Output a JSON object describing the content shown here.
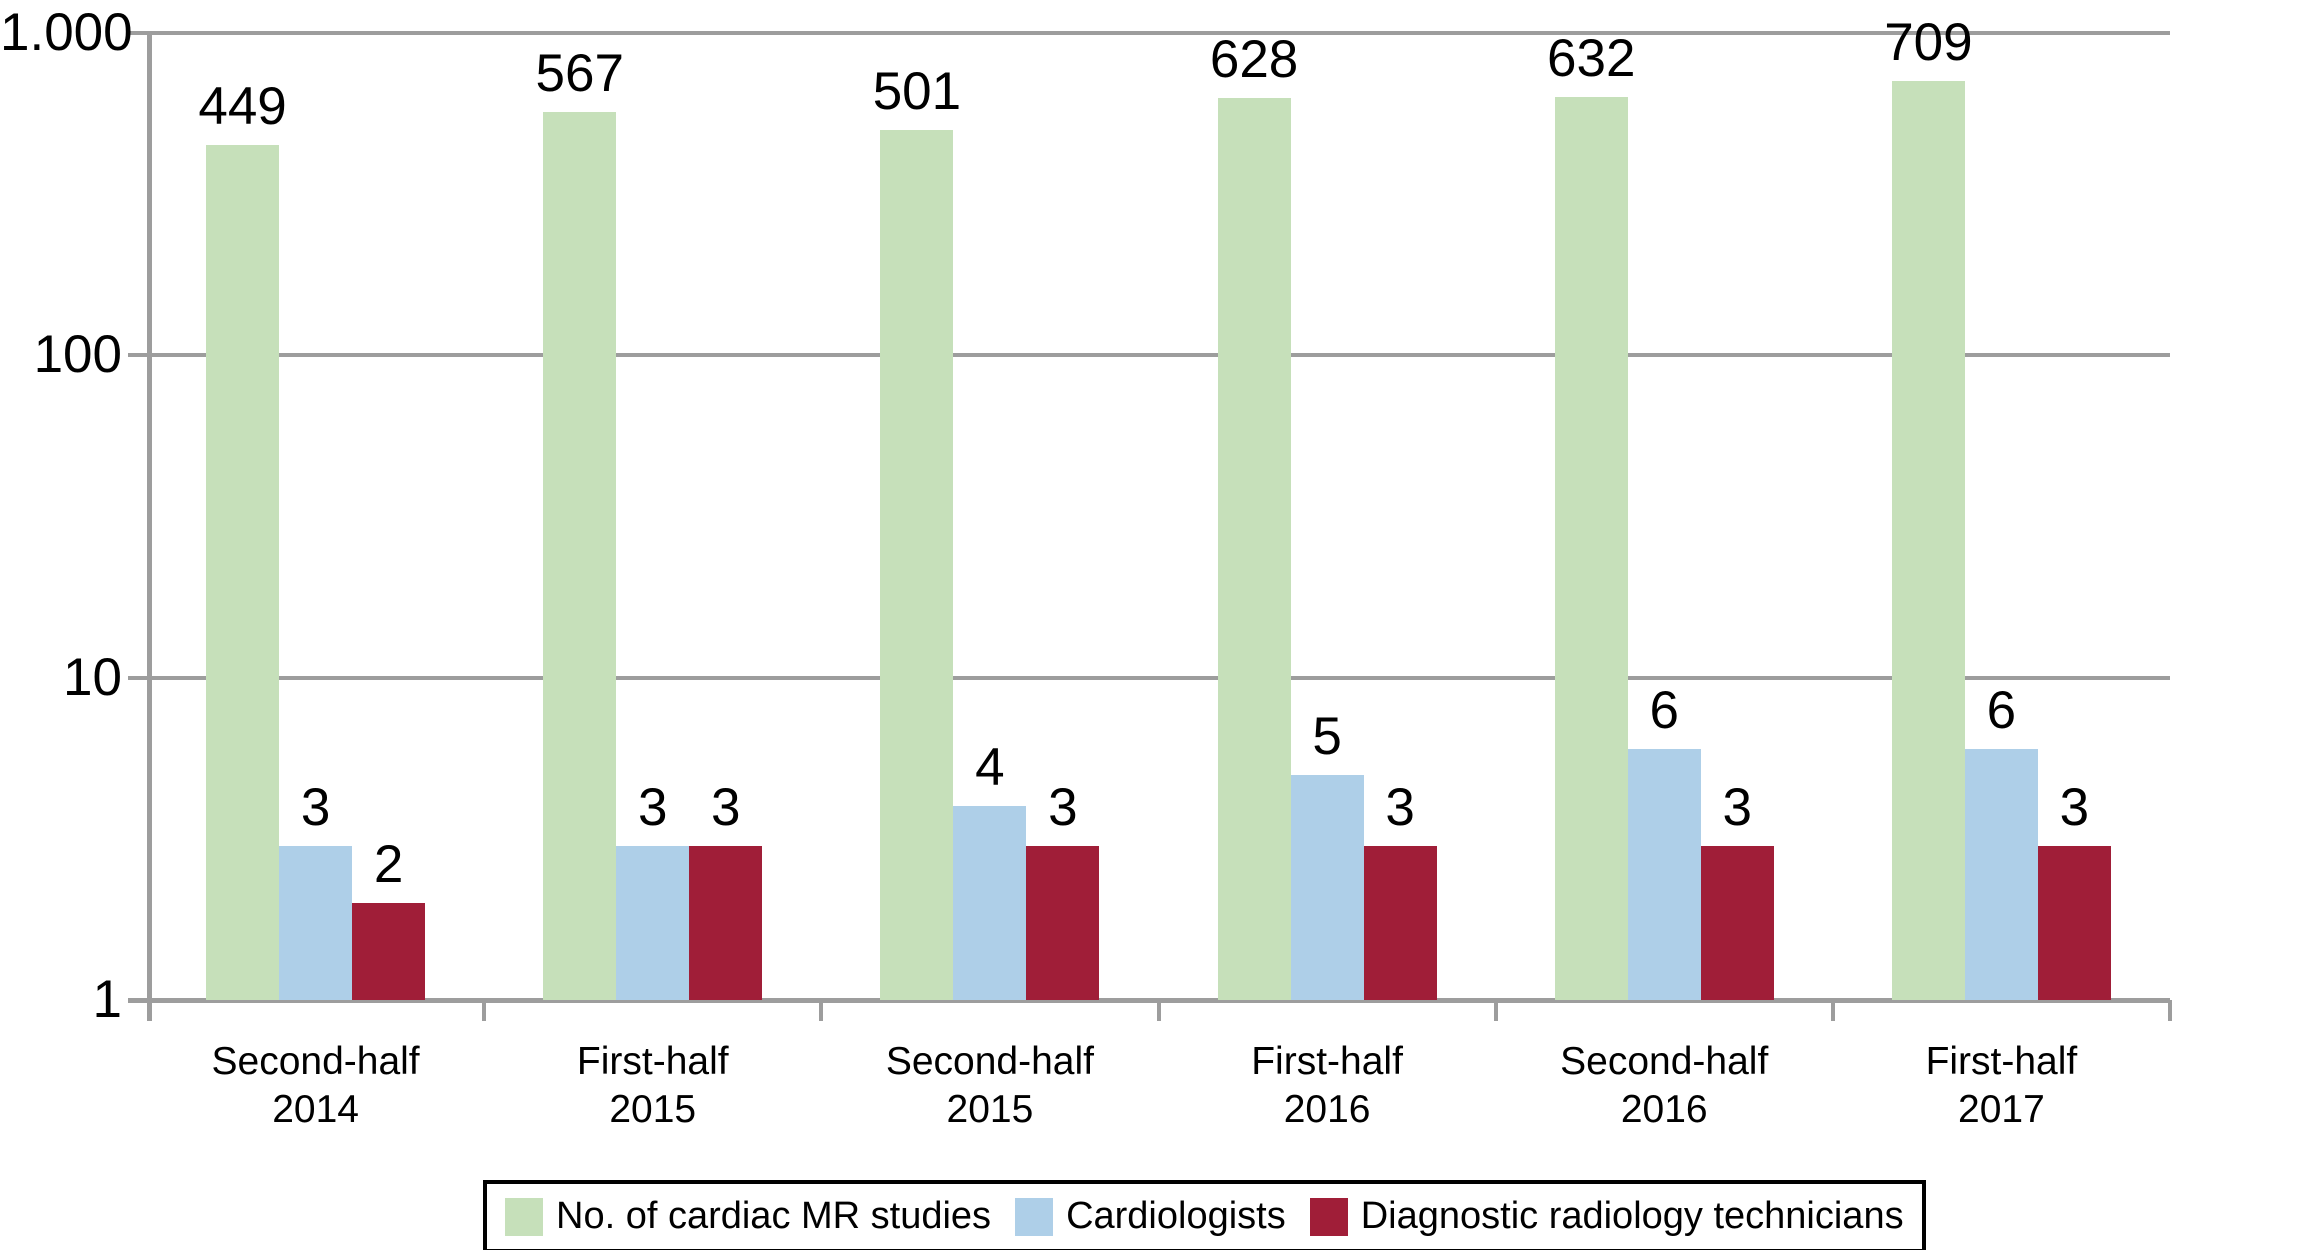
{
  "chart_data": {
    "type": "bar",
    "title": "",
    "xlabel": "",
    "ylabel": "",
    "y_scale": "log10",
    "ylim": [
      1,
      1000
    ],
    "grid": true,
    "gridline_color": "#9d9d9d",
    "background_color": "#ffffff",
    "text_color": "#000000",
    "legend_position": "bottom",
    "categories": [
      "Second-half\n2014",
      "First-half\n2015",
      "Second-half\n2015",
      "First-half\n2016",
      "Second-half\n2016",
      "First-half\n2017"
    ],
    "series": [
      {
        "name": "No. of cardiac MR studies",
        "color": "#c6e0ba",
        "values": [
          449,
          567,
          501,
          628,
          632,
          709
        ]
      },
      {
        "name": "Cardiologists",
        "color": "#aecfe8",
        "values": [
          3,
          3,
          4,
          5,
          6,
          6
        ]
      },
      {
        "name": "Diagnostic radiology technicians",
        "color": "#a01e38",
        "values": [
          2,
          3,
          3,
          3,
          3,
          3
        ]
      }
    ],
    "y_axis_ticks": [
      {
        "label": "1.000",
        "value": 1000
      },
      {
        "label": "100",
        "value": 100
      },
      {
        "label": "10",
        "value": 10
      },
      {
        "label": "1",
        "value": 1
      }
    ]
  }
}
